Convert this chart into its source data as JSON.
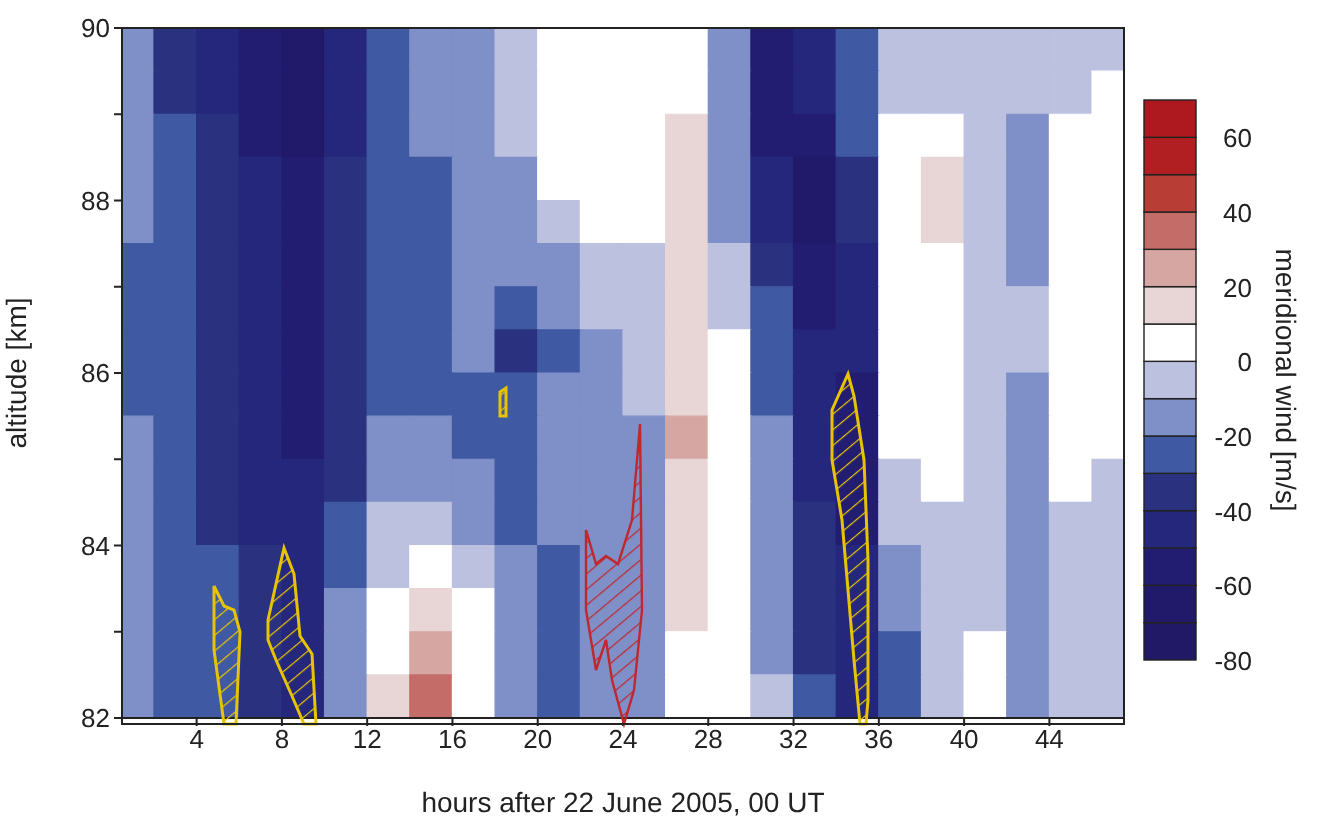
{
  "chart_data": {
    "type": "heatmap",
    "xlabel": "hours after 22 June 2005, 00 UT",
    "ylabel": "altitude [km]",
    "clabel": "meridional wind [m/s]",
    "x": [
      1,
      3,
      5,
      7,
      9,
      11,
      13,
      15,
      17,
      19,
      21,
      23,
      25,
      27,
      29,
      31,
      33,
      35,
      37,
      39,
      41,
      43,
      45,
      47
    ],
    "y": [
      89.75,
      89.25,
      88.75,
      88.25,
      87.75,
      87.25,
      86.75,
      86.25,
      85.75,
      85.25,
      84.75,
      84.25,
      83.75,
      83.25,
      82.75,
      82.25
    ],
    "xlim": [
      0.5,
      47.5
    ],
    "xticks": [
      4,
      8,
      12,
      16,
      20,
      24,
      28,
      32,
      36,
      40,
      44
    ],
    "ylim": [
      82,
      90
    ],
    "yticks": [
      82,
      {
        "value": 83,
        "label": null
      },
      84,
      {
        "value": 85,
        "label": null
      },
      86,
      {
        "value": 87,
        "label": null
      },
      88,
      {
        "value": 89,
        "label": null
      },
      90
    ],
    "clim": [
      -80,
      70
    ],
    "cticks": [
      -80,
      -60,
      -40,
      -20,
      0,
      20,
      40,
      60
    ],
    "cells": [
      [
        -20,
        -35,
        -45,
        -55,
        -65,
        -45,
        -25,
        -15,
        -15,
        -5,
        5,
        5,
        5,
        5,
        -15,
        -55,
        -45,
        -25,
        -5,
        -5,
        -5,
        -5,
        -5,
        -5
      ],
      [
        -20,
        -35,
        -45,
        -55,
        -65,
        -45,
        -25,
        -15,
        -15,
        -5,
        5,
        5,
        5,
        5,
        -15,
        -55,
        -45,
        -25,
        -5,
        -5,
        -5,
        -5,
        -5,
        5
      ],
      [
        -20,
        -30,
        -40,
        -55,
        -65,
        -45,
        -25,
        -20,
        -15,
        -5,
        5,
        5,
        5,
        15,
        -15,
        -55,
        -55,
        -25,
        5,
        5,
        -5,
        -15,
        5,
        5
      ],
      [
        -20,
        -30,
        -40,
        -50,
        -60,
        -40,
        -25,
        -25,
        -15,
        -15,
        5,
        5,
        5,
        15,
        -15,
        -45,
        -65,
        -35,
        5,
        15,
        -5,
        -15,
        5,
        5
      ],
      [
        -20,
        -30,
        -40,
        -50,
        -60,
        -40,
        -25,
        -25,
        -15,
        -15,
        -5,
        5,
        5,
        15,
        -15,
        -45,
        -65,
        -35,
        5,
        15,
        -5,
        -15,
        5,
        5
      ],
      [
        -25,
        -30,
        -40,
        -50,
        -55,
        -40,
        -25,
        -25,
        -20,
        -20,
        -15,
        -5,
        -5,
        15,
        -5,
        -35,
        -55,
        -45,
        5,
        5,
        -5,
        -15,
        5,
        5
      ],
      [
        -25,
        -30,
        -40,
        -50,
        -55,
        -40,
        -25,
        -25,
        -20,
        -25,
        -15,
        -5,
        -5,
        15,
        -5,
        -25,
        -55,
        -45,
        5,
        5,
        -5,
        -5,
        5,
        5
      ],
      [
        -25,
        -30,
        -35,
        -45,
        -55,
        -35,
        -25,
        -25,
        -20,
        -35,
        -25,
        -15,
        -5,
        15,
        5,
        -25,
        -45,
        -45,
        5,
        5,
        -5,
        -5,
        5,
        5
      ],
      [
        -25,
        -30,
        -35,
        -45,
        -55,
        -35,
        -25,
        -25,
        -25,
        -30,
        -20,
        -15,
        -5,
        15,
        5,
        -25,
        -45,
        -55,
        5,
        5,
        -5,
        -15,
        5,
        5
      ],
      [
        -20,
        -30,
        -35,
        -45,
        -55,
        -35,
        -20,
        -20,
        -25,
        -25,
        -20,
        -15,
        -15,
        25,
        5,
        -15,
        -45,
        -55,
        5,
        5,
        -5,
        -15,
        5,
        5
      ],
      [
        -20,
        -30,
        -35,
        -45,
        -50,
        -35,
        -15,
        -15,
        -20,
        -25,
        -20,
        -15,
        -15,
        15,
        5,
        -15,
        -45,
        -55,
        -5,
        5,
        -5,
        -15,
        5,
        -5
      ],
      [
        -20,
        -30,
        -35,
        -45,
        -50,
        -30,
        -5,
        -5,
        -15,
        -25,
        -20,
        -20,
        -15,
        15,
        5,
        -15,
        -35,
        -55,
        -5,
        -5,
        -5,
        -15,
        -5,
        -5
      ],
      [
        -15,
        -25,
        -30,
        -40,
        -50,
        -25,
        -5,
        5,
        -5,
        -20,
        -25,
        -20,
        -15,
        15,
        5,
        -15,
        -35,
        -45,
        -15,
        -5,
        -5,
        -15,
        -5,
        -5
      ],
      [
        -15,
        -25,
        -30,
        -40,
        -50,
        -20,
        5,
        15,
        5,
        -15,
        -25,
        -20,
        -15,
        15,
        5,
        -15,
        -35,
        -45,
        -15,
        -5,
        -5,
        -15,
        -5,
        -5
      ],
      [
        -15,
        -25,
        -30,
        -40,
        -50,
        -20,
        5,
        25,
        5,
        -15,
        -25,
        -20,
        -15,
        5,
        5,
        -15,
        -35,
        -45,
        -25,
        -5,
        5,
        -15,
        -5,
        -5
      ],
      [
        -15,
        -25,
        -30,
        -40,
        -50,
        -15,
        15,
        35,
        5,
        -15,
        -25,
        -20,
        -15,
        5,
        5,
        -5,
        -25,
        -45,
        -25,
        -5,
        5,
        -15,
        -5,
        -5
      ]
    ]
  }
}
